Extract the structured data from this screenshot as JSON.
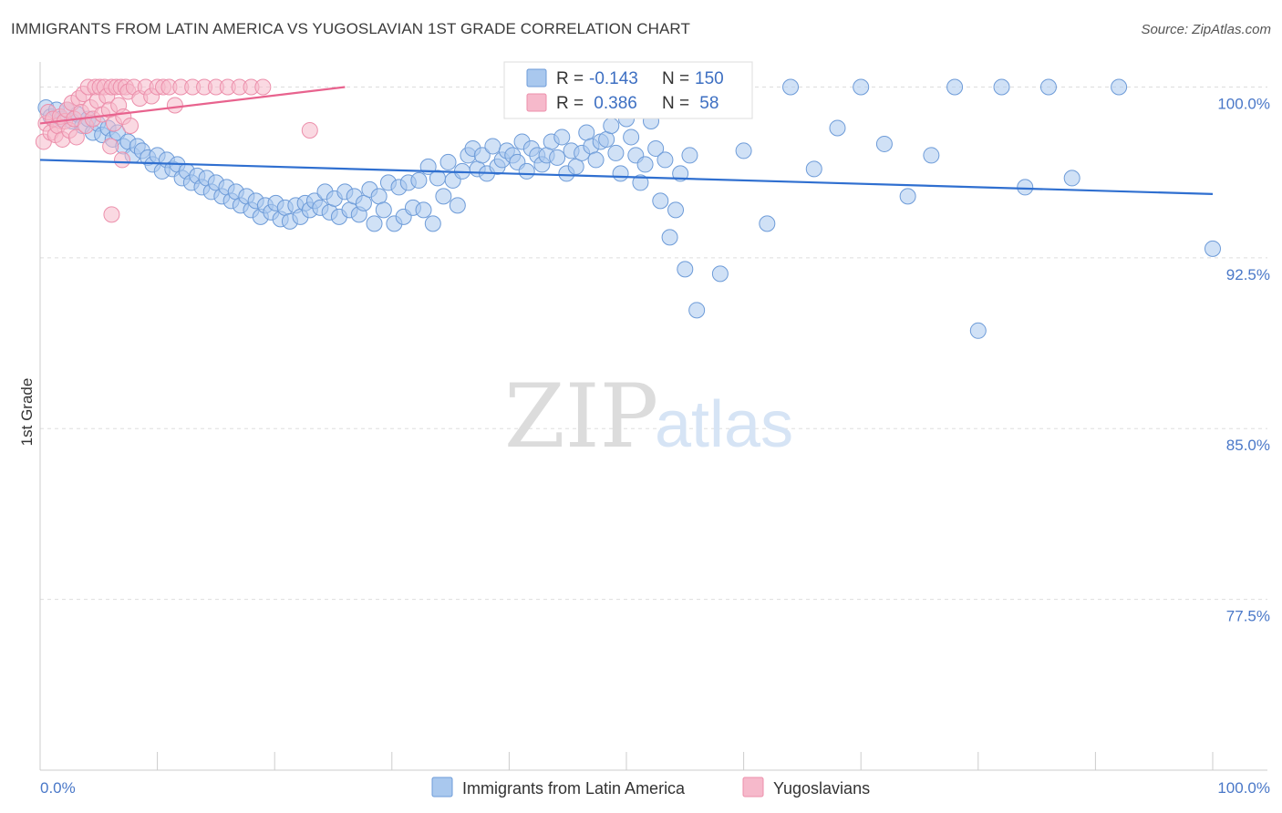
{
  "header": {
    "title": "IMMIGRANTS FROM LATIN AMERICA VS YUGOSLAVIAN 1ST GRADE CORRELATION CHART",
    "source": "Source: ZipAtlas.com"
  },
  "watermark": {
    "zip": "ZIP",
    "atlas": "atlas"
  },
  "colors": {
    "blue_fill": "#a9c8ee",
    "blue_stroke": "#6d9bd8",
    "blue_line": "#2f6fd0",
    "pink_fill": "#f6b9cb",
    "pink_stroke": "#ec8fab",
    "pink_line": "#e8638e",
    "grid": "#dddddd",
    "axis_label": "#4a78c8"
  },
  "legend": {
    "series": [
      {
        "r_label": "R =",
        "r_value": "-0.143",
        "n_label": "N =",
        "n_value": "150"
      },
      {
        "r_label": "R =",
        "r_value": " 0.386",
        "n_label": "N =",
        "n_value": " 58"
      }
    ]
  },
  "chart_data": {
    "type": "scatter",
    "title": "IMMIGRANTS FROM LATIN AMERICA VS YUGOSLAVIAN 1ST GRADE CORRELATION CHART",
    "xlabel": "",
    "ylabel": "1st Grade",
    "xlim": [
      0,
      100
    ],
    "ylim": [
      70.0,
      101.1
    ],
    "x_tick_labels": [
      "0.0%",
      "100.0%"
    ],
    "y_ticks": [
      {
        "value": 100.0,
        "label": "100.0%"
      },
      {
        "value": 92.5,
        "label": "92.5%"
      },
      {
        "value": 85.0,
        "label": "85.0%"
      },
      {
        "value": 77.5,
        "label": "77.5%"
      }
    ],
    "grid": true,
    "legend_position": "top-center",
    "series": [
      {
        "name": "Immigrants from Latin America",
        "color": "blue",
        "n": 150,
        "r": -0.143,
        "trend": {
          "x": [
            0,
            100
          ],
          "y": [
            96.8,
            95.3
          ]
        },
        "points": [
          [
            0.5,
            99.1
          ],
          [
            0.9,
            98.7
          ],
          [
            1.4,
            99.0
          ],
          [
            1.8,
            98.6
          ],
          [
            2.3,
            99.0
          ],
          [
            2.7,
            98.5
          ],
          [
            3.2,
            98.8
          ],
          [
            3.6,
            98.3
          ],
          [
            4.1,
            98.6
          ],
          [
            4.5,
            98.0
          ],
          [
            4.9,
            98.4
          ],
          [
            5.3,
            97.9
          ],
          [
            5.8,
            98.2
          ],
          [
            6.2,
            97.7
          ],
          [
            6.6,
            98.0
          ],
          [
            7.1,
            97.4
          ],
          [
            7.5,
            97.6
          ],
          [
            7.9,
            97.0
          ],
          [
            8.3,
            97.4
          ],
          [
            8.7,
            97.2
          ],
          [
            9.2,
            96.9
          ],
          [
            9.6,
            96.6
          ],
          [
            10.0,
            97.0
          ],
          [
            10.4,
            96.3
          ],
          [
            10.8,
            96.8
          ],
          [
            11.3,
            96.4
          ],
          [
            11.7,
            96.6
          ],
          [
            12.1,
            96.0
          ],
          [
            12.5,
            96.3
          ],
          [
            12.9,
            95.8
          ],
          [
            13.4,
            96.1
          ],
          [
            13.8,
            95.6
          ],
          [
            14.2,
            96.0
          ],
          [
            14.6,
            95.4
          ],
          [
            15.0,
            95.8
          ],
          [
            15.5,
            95.2
          ],
          [
            15.9,
            95.6
          ],
          [
            16.3,
            95.0
          ],
          [
            16.7,
            95.4
          ],
          [
            17.1,
            94.8
          ],
          [
            17.6,
            95.2
          ],
          [
            18.0,
            94.6
          ],
          [
            18.4,
            95.0
          ],
          [
            18.8,
            94.3
          ],
          [
            19.2,
            94.8
          ],
          [
            19.7,
            94.5
          ],
          [
            20.1,
            94.9
          ],
          [
            20.5,
            94.2
          ],
          [
            20.9,
            94.7
          ],
          [
            21.3,
            94.1
          ],
          [
            21.8,
            94.8
          ],
          [
            22.2,
            94.3
          ],
          [
            22.6,
            94.9
          ],
          [
            23.0,
            94.6
          ],
          [
            23.4,
            95.0
          ],
          [
            23.9,
            94.7
          ],
          [
            24.3,
            95.4
          ],
          [
            24.7,
            94.5
          ],
          [
            25.1,
            95.1
          ],
          [
            25.5,
            94.3
          ],
          [
            26.0,
            95.4
          ],
          [
            26.4,
            94.6
          ],
          [
            26.8,
            95.2
          ],
          [
            27.2,
            94.4
          ],
          [
            27.6,
            94.9
          ],
          [
            28.1,
            95.5
          ],
          [
            28.5,
            94.0
          ],
          [
            28.9,
            95.2
          ],
          [
            29.3,
            94.6
          ],
          [
            29.7,
            95.8
          ],
          [
            30.2,
            94.0
          ],
          [
            30.6,
            95.6
          ],
          [
            31.0,
            94.3
          ],
          [
            31.4,
            95.8
          ],
          [
            31.8,
            94.7
          ],
          [
            32.3,
            95.9
          ],
          [
            32.7,
            94.6
          ],
          [
            33.1,
            96.5
          ],
          [
            33.5,
            94.0
          ],
          [
            33.9,
            96.0
          ],
          [
            34.4,
            95.2
          ],
          [
            34.8,
            96.7
          ],
          [
            35.2,
            95.9
          ],
          [
            35.6,
            94.8
          ],
          [
            36.0,
            96.3
          ],
          [
            36.5,
            97.0
          ],
          [
            36.9,
            97.3
          ],
          [
            37.3,
            96.4
          ],
          [
            37.7,
            97.0
          ],
          [
            38.1,
            96.2
          ],
          [
            38.6,
            97.4
          ],
          [
            39.0,
            96.5
          ],
          [
            39.4,
            96.8
          ],
          [
            39.8,
            97.2
          ],
          [
            40.3,
            97.0
          ],
          [
            40.7,
            96.7
          ],
          [
            41.1,
            97.6
          ],
          [
            41.5,
            96.3
          ],
          [
            41.9,
            97.3
          ],
          [
            42.4,
            97.0
          ],
          [
            42.8,
            96.6
          ],
          [
            43.2,
            97.0
          ],
          [
            43.6,
            97.6
          ],
          [
            44.1,
            96.9
          ],
          [
            44.5,
            97.8
          ],
          [
            44.9,
            96.2
          ],
          [
            45.3,
            97.2
          ],
          [
            45.7,
            96.5
          ],
          [
            46.2,
            97.1
          ],
          [
            46.6,
            98.0
          ],
          [
            47.0,
            97.4
          ],
          [
            47.4,
            96.8
          ],
          [
            47.8,
            97.6
          ],
          [
            48.3,
            97.7
          ],
          [
            48.7,
            98.3
          ],
          [
            49.1,
            97.1
          ],
          [
            49.5,
            96.2
          ],
          [
            50.0,
            98.6
          ],
          [
            50.4,
            97.8
          ],
          [
            50.8,
            97.0
          ],
          [
            51.2,
            95.8
          ],
          [
            51.6,
            96.6
          ],
          [
            52.1,
            98.5
          ],
          [
            52.5,
            97.3
          ],
          [
            52.9,
            95.0
          ],
          [
            53.3,
            96.8
          ],
          [
            53.7,
            93.4
          ],
          [
            54.2,
            94.6
          ],
          [
            54.6,
            96.2
          ],
          [
            55.0,
            92.0
          ],
          [
            55.4,
            97.0
          ],
          [
            56.0,
            90.2
          ],
          [
            58.0,
            91.8
          ],
          [
            60.0,
            97.2
          ],
          [
            62.0,
            94.0
          ],
          [
            64.0,
            100.0
          ],
          [
            66.0,
            96.4
          ],
          [
            68.0,
            98.2
          ],
          [
            70.0,
            100.0
          ],
          [
            72.0,
            97.5
          ],
          [
            74.0,
            95.2
          ],
          [
            76.0,
            97.0
          ],
          [
            78.0,
            100.0
          ],
          [
            80.0,
            89.3
          ],
          [
            82.0,
            100.0
          ],
          [
            84.0,
            95.6
          ],
          [
            86.0,
            100.0
          ],
          [
            88.0,
            96.0
          ],
          [
            92.0,
            100.0
          ],
          [
            100.0,
            92.9
          ]
        ]
      },
      {
        "name": "Yugoslavians",
        "color": "pink",
        "n": 58,
        "r": 0.386,
        "trend": {
          "x": [
            0,
            26
          ],
          "y": [
            98.4,
            100.0
          ]
        },
        "points": [
          [
            0.3,
            97.6
          ],
          [
            0.5,
            98.4
          ],
          [
            0.7,
            98.9
          ],
          [
            0.9,
            98.0
          ],
          [
            1.1,
            98.6
          ],
          [
            1.3,
            97.9
          ],
          [
            1.5,
            98.3
          ],
          [
            1.7,
            98.7
          ],
          [
            1.9,
            97.7
          ],
          [
            2.1,
            98.5
          ],
          [
            2.3,
            99.0
          ],
          [
            2.5,
            98.1
          ],
          [
            2.7,
            99.3
          ],
          [
            2.9,
            98.6
          ],
          [
            3.1,
            97.8
          ],
          [
            3.3,
            99.5
          ],
          [
            3.5,
            98.9
          ],
          [
            3.7,
            99.7
          ],
          [
            3.9,
            98.3
          ],
          [
            4.1,
            100.0
          ],
          [
            4.3,
            99.1
          ],
          [
            4.5,
            98.6
          ],
          [
            4.7,
            100.0
          ],
          [
            4.9,
            99.4
          ],
          [
            5.1,
            100.0
          ],
          [
            5.3,
            98.8
          ],
          [
            5.5,
            100.0
          ],
          [
            5.7,
            99.6
          ],
          [
            5.9,
            99.0
          ],
          [
            6.1,
            100.0
          ],
          [
            6.3,
            98.4
          ],
          [
            6.5,
            100.0
          ],
          [
            6.7,
            99.2
          ],
          [
            6.9,
            100.0
          ],
          [
            7.1,
            98.7
          ],
          [
            7.3,
            100.0
          ],
          [
            7.5,
            99.8
          ],
          [
            7.7,
            98.3
          ],
          [
            8.0,
            100.0
          ],
          [
            8.5,
            99.5
          ],
          [
            9.0,
            100.0
          ],
          [
            9.5,
            99.6
          ],
          [
            10.0,
            100.0
          ],
          [
            10.5,
            100.0
          ],
          [
            11.0,
            100.0
          ],
          [
            11.5,
            99.2
          ],
          [
            12.0,
            100.0
          ],
          [
            13.0,
            100.0
          ],
          [
            14.0,
            100.0
          ],
          [
            15.0,
            100.0
          ],
          [
            16.0,
            100.0
          ],
          [
            17.0,
            100.0
          ],
          [
            18.0,
            100.0
          ],
          [
            19.0,
            100.0
          ],
          [
            6.0,
            97.4
          ],
          [
            7.0,
            96.8
          ],
          [
            6.1,
            94.4
          ],
          [
            23.0,
            98.1
          ]
        ]
      }
    ]
  },
  "bottom_legend": {
    "items": [
      {
        "label": "Immigrants from Latin America"
      },
      {
        "label": "Yugoslavians"
      }
    ]
  }
}
